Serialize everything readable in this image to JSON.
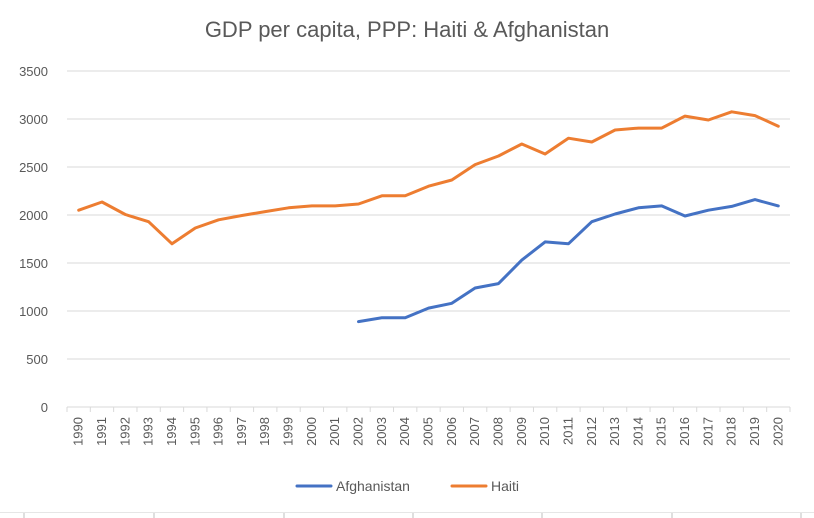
{
  "chart_data": {
    "type": "line",
    "title": "GDP per capita, PPP: Haiti & Afghanistan",
    "xlabel": "",
    "ylabel": "",
    "ylim": [
      0,
      3500
    ],
    "yticks": [
      0,
      500,
      1000,
      1500,
      2000,
      2500,
      3000,
      3500
    ],
    "yticks_labels": [
      "0",
      "500",
      "1000",
      "1500",
      "2000",
      "2500",
      "3000",
      "3500"
    ],
    "grid": true,
    "legend_position": "bottom",
    "categories": [
      "1990",
      "1991",
      "1992",
      "1993",
      "1994",
      "1995",
      "1996",
      "1997",
      "1998",
      "1999",
      "2000",
      "2001",
      "2002",
      "2003",
      "2004",
      "2005",
      "2006",
      "2007",
      "2008",
      "2009",
      "2010",
      "2011",
      "2012",
      "2013",
      "2014",
      "2015",
      "2016",
      "2017",
      "2018",
      "2019",
      "2020"
    ],
    "series": [
      {
        "name": "Afghanistan",
        "color": "#4472C4",
        "values": [
          null,
          null,
          null,
          null,
          null,
          null,
          null,
          null,
          null,
          null,
          null,
          null,
          890,
          930,
          930,
          1030,
          1080,
          1240,
          1285,
          1530,
          1720,
          1700,
          1930,
          2010,
          2075,
          2095,
          1990,
          2050,
          2090,
          2160,
          2095
        ]
      },
      {
        "name": "Haiti",
        "color": "#ED7D31",
        "values": [
          2050,
          2135,
          2005,
          1930,
          1700,
          1865,
          1950,
          1995,
          2035,
          2075,
          2095,
          2095,
          2115,
          2200,
          2200,
          2300,
          2365,
          2525,
          2615,
          2740,
          2635,
          2800,
          2760,
          2885,
          2905,
          2905,
          3030,
          2990,
          3075,
          3035,
          2925
        ]
      }
    ]
  }
}
